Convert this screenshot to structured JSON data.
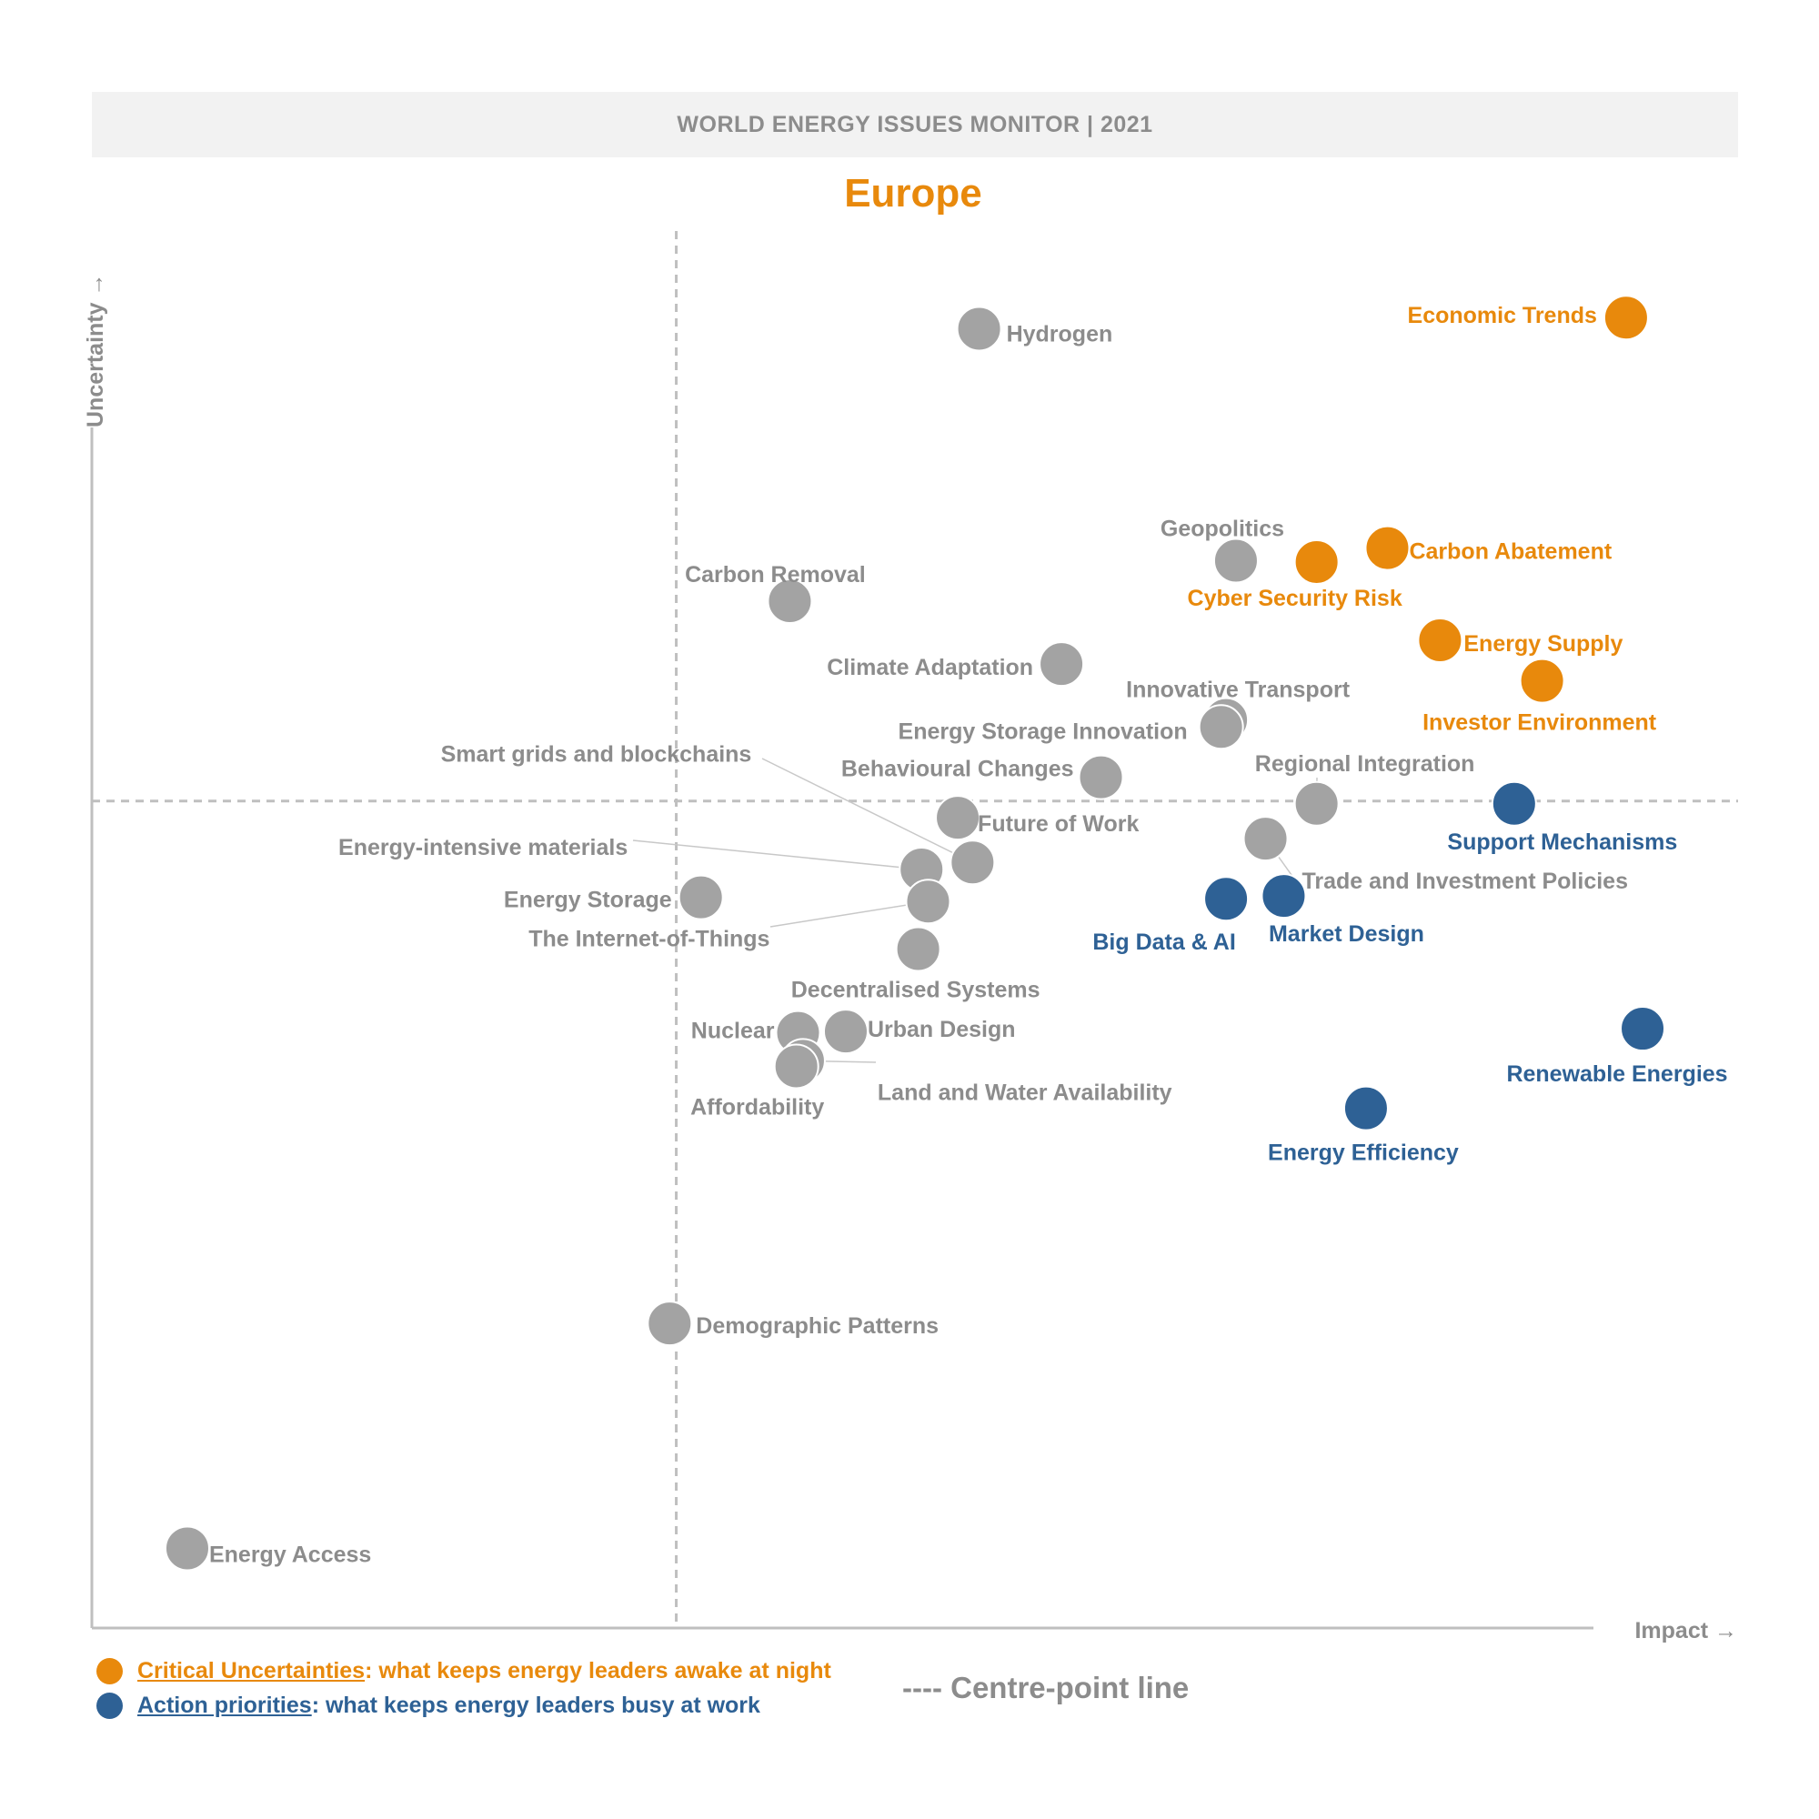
{
  "header": {
    "banner": "WORLD ENERGY ISSUES MONITOR | 2021",
    "region": "Europe"
  },
  "colors": {
    "critical": "#e8890c",
    "action": "#2e6195",
    "neutral": "#a3a3a3",
    "axis": "#bfbfbf",
    "axis_label": "#8c8c8c"
  },
  "legend": {
    "critical": {
      "name": "Critical Uncertainties",
      "desc": ": what keeps energy leaders awake at night"
    },
    "action": {
      "name": "Action priorities",
      "desc": ": what keeps energy leaders busy at work"
    },
    "centre_line": "---- Centre-point line"
  },
  "chart_data": {
    "type": "scatter",
    "xlabel": "Impact →",
    "ylabel": "Uncertainty →",
    "xlim": [
      0,
      100
    ],
    "ylim": [
      0,
      100
    ],
    "centre_x": 35.5,
    "centre_y": 59.2,
    "grid": false,
    "legend_position": "bottom-left",
    "points": [
      {
        "name": "Economic Trends",
        "x": 93.2,
        "y": 93.8,
        "group": "critical"
      },
      {
        "name": "Carbon Abatement",
        "x": 78.7,
        "y": 77.3,
        "group": "critical"
      },
      {
        "name": "Cyber Security Risk",
        "x": 74.4,
        "y": 76.3,
        "group": "critical"
      },
      {
        "name": "Energy Supply",
        "x": 81.9,
        "y": 70.7,
        "group": "critical"
      },
      {
        "name": "Investor Environment",
        "x": 88.1,
        "y": 67.8,
        "group": "critical"
      },
      {
        "name": "Support Mechanisms",
        "x": 86.4,
        "y": 59.0,
        "group": "action"
      },
      {
        "name": "Big Data & AI",
        "x": 68.9,
        "y": 52.2,
        "group": "action"
      },
      {
        "name": "Market Design",
        "x": 72.4,
        "y": 52.4,
        "group": "action"
      },
      {
        "name": "Renewable Energies",
        "x": 94.2,
        "y": 42.9,
        "group": "action"
      },
      {
        "name": "Energy Efficiency",
        "x": 77.4,
        "y": 37.2,
        "group": "action"
      },
      {
        "name": "Hydrogen",
        "x": 53.9,
        "y": 93.0,
        "group": "neutral"
      },
      {
        "name": "Geopolitics",
        "x": 69.5,
        "y": 76.4,
        "group": "neutral"
      },
      {
        "name": "Carbon Removal",
        "x": 42.4,
        "y": 73.5,
        "group": "neutral"
      },
      {
        "name": "Climate Adaptation",
        "x": 58.9,
        "y": 69.0,
        "group": "neutral"
      },
      {
        "name": "Innovative Transport",
        "x": 68.9,
        "y": 65.0,
        "group": "neutral"
      },
      {
        "name": "Energy Storage Innovation",
        "x": 68.6,
        "y": 64.5,
        "group": "neutral"
      },
      {
        "name": "Behavioural Changes",
        "x": 61.3,
        "y": 60.9,
        "group": "neutral"
      },
      {
        "name": "Regional Integration",
        "x": 74.4,
        "y": 59.0,
        "group": "neutral"
      },
      {
        "name": "Future of Work",
        "x": 52.6,
        "y": 58.0,
        "group": "neutral"
      },
      {
        "name": "Trade and Investment Policies",
        "x": 71.3,
        "y": 56.5,
        "group": "neutral"
      },
      {
        "name": "Smart grids and blockchains",
        "x": 53.5,
        "y": 54.8,
        "group": "neutral"
      },
      {
        "name": "Energy-intensive materials",
        "x": 50.4,
        "y": 54.3,
        "group": "neutral"
      },
      {
        "name": "The Internet-of-Things",
        "x": 50.8,
        "y": 52.0,
        "group": "neutral"
      },
      {
        "name": "Energy Storage",
        "x": 37.0,
        "y": 52.3,
        "group": "neutral"
      },
      {
        "name": "Decentralised Systems",
        "x": 50.2,
        "y": 48.6,
        "group": "neutral"
      },
      {
        "name": "Urban Design",
        "x": 45.8,
        "y": 42.7,
        "group": "neutral"
      },
      {
        "name": "Nuclear",
        "x": 42.9,
        "y": 42.6,
        "group": "neutral"
      },
      {
        "name": "Land and Water Availability",
        "x": 43.2,
        "y": 40.6,
        "group": "neutral"
      },
      {
        "name": "Affordability",
        "x": 42.8,
        "y": 40.2,
        "group": "neutral"
      },
      {
        "name": "Demographic Patterns",
        "x": 35.1,
        "y": 21.8,
        "group": "neutral"
      },
      {
        "name": "Energy Access",
        "x": 5.8,
        "y": 5.7,
        "group": "neutral"
      }
    ]
  }
}
